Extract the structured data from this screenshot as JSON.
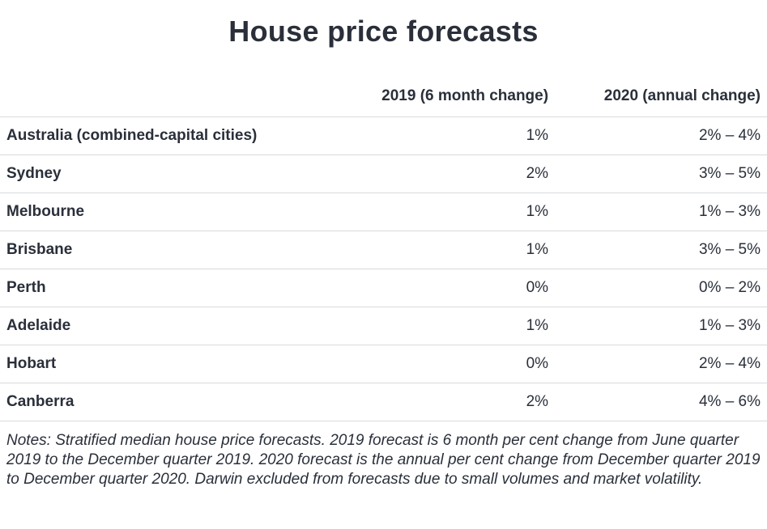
{
  "title": "House price forecasts",
  "table": {
    "type": "table",
    "columns": [
      {
        "key": "city",
        "label": "",
        "align": "left",
        "weight": "bold"
      },
      {
        "key": "y2019",
        "label": "2019 (6 month change)",
        "align": "right"
      },
      {
        "key": "y2020",
        "label": "2020 (annual change)",
        "align": "right"
      }
    ],
    "rows": [
      {
        "city": "Australia (combined-capital cities)",
        "y2019": "1%",
        "y2020": "2% – 4%"
      },
      {
        "city": "Sydney",
        "y2019": "2%",
        "y2020": "3% – 5%"
      },
      {
        "city": "Melbourne",
        "y2019": "1%",
        "y2020": "1% – 3%"
      },
      {
        "city": "Brisbane",
        "y2019": "1%",
        "y2020": "3% – 5%"
      },
      {
        "city": "Perth",
        "y2019": "0%",
        "y2020": "0% – 2%"
      },
      {
        "city": "Adelaide",
        "y2019": "1%",
        "y2020": "1% – 3%"
      },
      {
        "city": "Hobart",
        "y2019": "0%",
        "y2020": "2% – 4%"
      },
      {
        "city": "Canberra",
        "y2019": "2%",
        "y2020": "4% – 6%"
      }
    ],
    "colors": {
      "text": "#2a2f3a",
      "border": "#d9dadd",
      "background": "#ffffff"
    },
    "fontsize": {
      "title": 36,
      "header": 19,
      "cell": 19,
      "notes": 19
    }
  },
  "notes": "Notes: Stratified median house price forecasts. 2019 forecast is 6 month per cent change from June quarter 2019 to the December quarter 2019. 2020 forecast is the annual per cent change from December quarter 2019 to December quarter 2020. Darwin excluded from forecasts due to small volumes and market volatility."
}
